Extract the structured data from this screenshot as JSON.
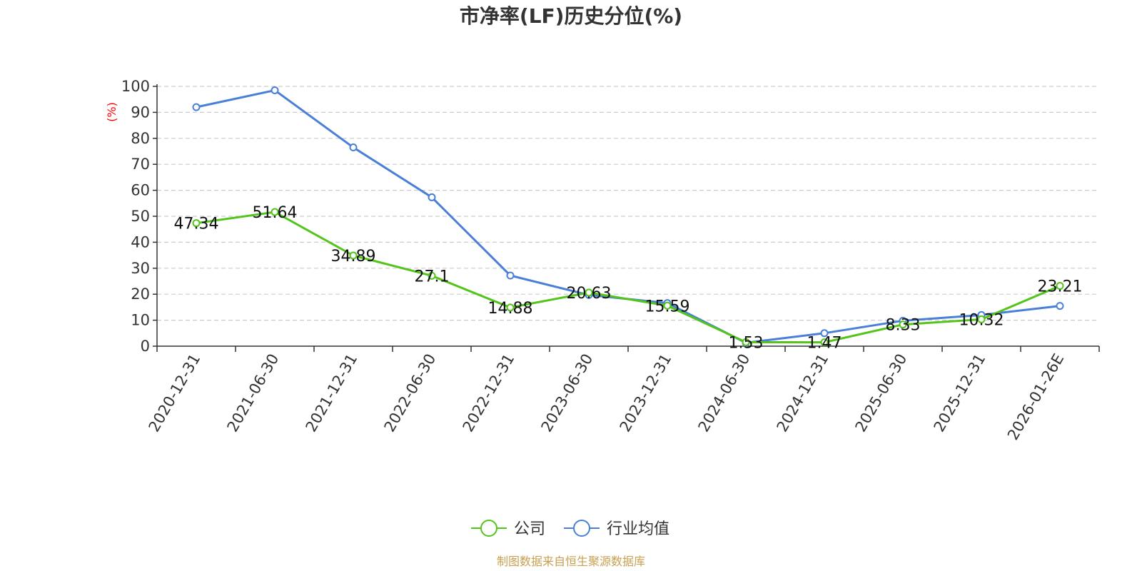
{
  "chart_data": {
    "type": "line",
    "title": "市净率(LF)历史分位(%)",
    "ylabel": "(%)",
    "xlabel": "",
    "categories": [
      "2020-12-31",
      "2021-06-30",
      "2021-12-31",
      "2022-06-30",
      "2022-12-31",
      "2023-06-30",
      "2023-12-31",
      "2024-06-30",
      "2024-12-31",
      "2025-06-30",
      "2025-12-31",
      "2026-01-26E"
    ],
    "ylim": [
      0,
      100
    ],
    "yticks": [
      0,
      10,
      20,
      30,
      40,
      50,
      60,
      70,
      80,
      90,
      100
    ],
    "grid": true,
    "legend_position": "bottom-center",
    "series": [
      {
        "name": "公司",
        "color": "#52c41a",
        "show_labels": true,
        "values": [
          47.34,
          51.64,
          34.89,
          27.1,
          14.88,
          20.63,
          15.59,
          1.53,
          1.47,
          8.33,
          10.32,
          23.21
        ]
      },
      {
        "name": "行业均值",
        "color": "#4a7fd8",
        "show_labels": false,
        "values": [
          92,
          98.5,
          76.5,
          57.3,
          27.2,
          19.7,
          16.6,
          1.3,
          5.0,
          9.8,
          12.0,
          15.5
        ]
      }
    ]
  },
  "footer": {
    "source": "制图数据来自恒生聚源数据库",
    "color": "#c8a050"
  },
  "colors": {
    "unit": "#ff0000",
    "axis": "#333333",
    "grid": "#cccccc"
  }
}
